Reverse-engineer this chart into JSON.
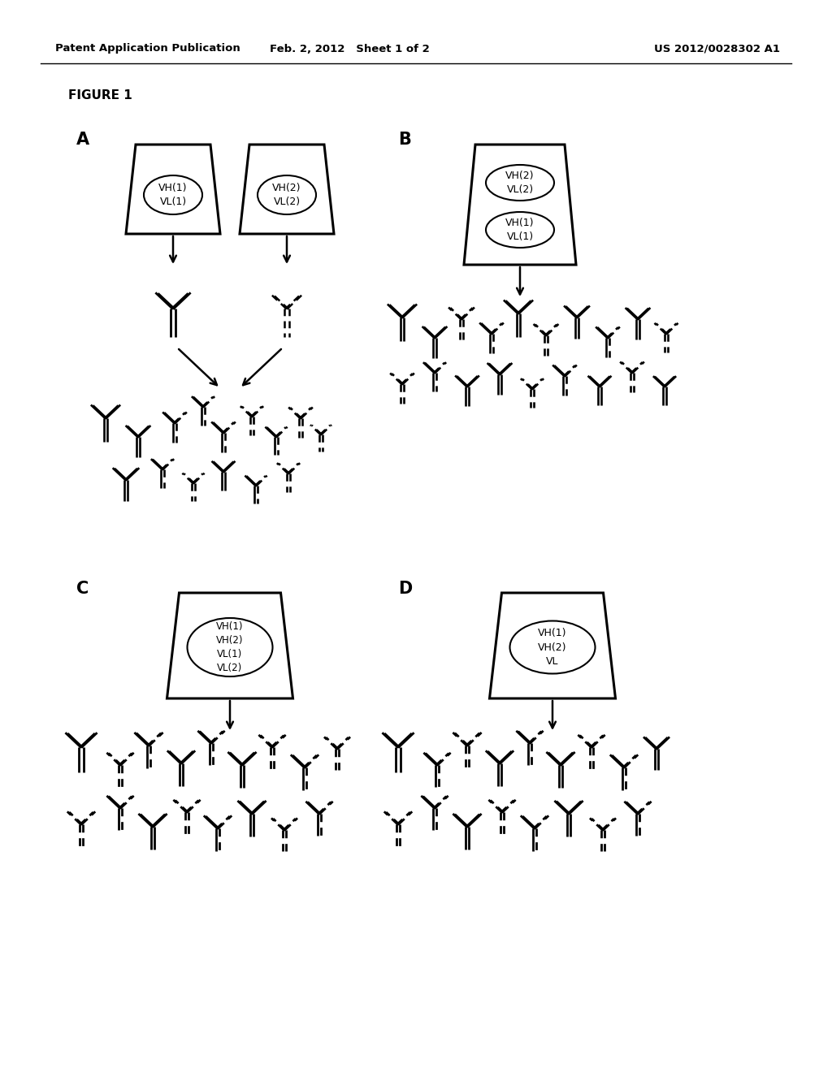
{
  "header_left": "Patent Application Publication",
  "header_mid": "Feb. 2, 2012   Sheet 1 of 2",
  "header_right": "US 2012/0028302 A1",
  "figure_label": "FIGURE 1",
  "background_color": "#ffffff",
  "line_color": "#000000"
}
